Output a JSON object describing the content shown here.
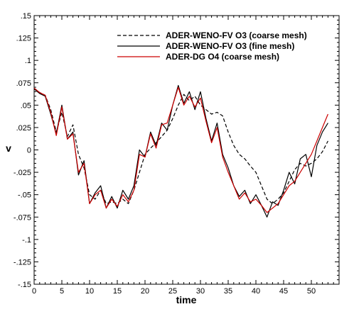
{
  "chart_data": {
    "type": "line",
    "xlabel": "time",
    "ylabel": "v",
    "xlim": [
      0,
      55
    ],
    "ylim": [
      -0.15,
      0.15
    ],
    "xticks": [
      0,
      5,
      10,
      15,
      20,
      25,
      30,
      35,
      40,
      45,
      50
    ],
    "yticks": [
      -0.15,
      -0.125,
      -0.1,
      -0.075,
      -0.05,
      -0.025,
      0,
      0.025,
      0.05,
      0.075,
      0.1,
      0.125,
      0.15
    ],
    "grid": false,
    "legend_position": "top-right",
    "series": [
      {
        "name": "ADER-WENO-FV O3 (coarse mesh)",
        "style": "dashed",
        "color": "#000000",
        "x": [
          0,
          1,
          2,
          3,
          4,
          5,
          6,
          7,
          8,
          9,
          10,
          11,
          12,
          13,
          14,
          15,
          16,
          17,
          18,
          19,
          20,
          21,
          22,
          23,
          24,
          25,
          26,
          27,
          28,
          29,
          30,
          31,
          32,
          33,
          34,
          35,
          36,
          37,
          38,
          39,
          40,
          41,
          42,
          43,
          44,
          45,
          46,
          47,
          48,
          49,
          50,
          51,
          52,
          53
        ],
        "y": [
          0.069,
          0.064,
          0.061,
          0.045,
          0.02,
          0.042,
          0.015,
          0.028,
          -0.005,
          -0.02,
          -0.05,
          -0.055,
          -0.045,
          -0.06,
          -0.058,
          -0.06,
          -0.055,
          -0.06,
          -0.045,
          -0.025,
          -0.005,
          0.002,
          0.008,
          0.015,
          0.022,
          0.035,
          0.05,
          0.062,
          0.055,
          0.06,
          0.05,
          0.045,
          0.04,
          0.042,
          0.038,
          0.02,
          0.005,
          -0.005,
          -0.01,
          -0.018,
          -0.025,
          -0.04,
          -0.055,
          -0.06,
          -0.055,
          -0.048,
          -0.035,
          -0.022,
          -0.015,
          -0.018,
          -0.015,
          -0.01,
          -0.002,
          0.01
        ]
      },
      {
        "name": "ADER-WENO-FV O3 (fine mesh)",
        "style": "solid",
        "color": "#000000",
        "x": [
          0,
          1,
          2,
          3,
          4,
          5,
          6,
          7,
          8,
          9,
          10,
          11,
          12,
          13,
          14,
          15,
          16,
          17,
          18,
          19,
          20,
          21,
          22,
          23,
          24,
          25,
          26,
          27,
          28,
          29,
          30,
          31,
          32,
          33,
          34,
          35,
          36,
          37,
          38,
          39,
          40,
          41,
          42,
          43,
          44,
          45,
          46,
          47,
          48,
          49,
          50,
          51,
          52,
          53
        ],
        "y": [
          0.068,
          0.063,
          0.06,
          0.04,
          0.018,
          0.05,
          0.012,
          0.02,
          -0.028,
          -0.012,
          -0.06,
          -0.048,
          -0.04,
          -0.065,
          -0.052,
          -0.065,
          -0.045,
          -0.055,
          -0.04,
          0.0,
          -0.008,
          0.02,
          0.005,
          0.03,
          0.022,
          0.05,
          0.072,
          0.052,
          0.065,
          0.045,
          0.065,
          0.035,
          0.01,
          0.03,
          -0.005,
          -0.02,
          -0.04,
          -0.052,
          -0.045,
          -0.06,
          -0.05,
          -0.062,
          -0.075,
          -0.058,
          -0.062,
          -0.045,
          -0.025,
          -0.038,
          -0.01,
          -0.005,
          -0.03,
          0.005,
          0.02,
          0.03
        ]
      },
      {
        "name": "ADER-DG O4 (coarse mesh)",
        "style": "solid",
        "color": "#cc0000",
        "x": [
          0,
          1,
          2,
          3,
          4,
          5,
          6,
          7,
          8,
          9,
          10,
          11,
          12,
          13,
          14,
          15,
          16,
          17,
          18,
          19,
          20,
          21,
          22,
          23,
          24,
          25,
          26,
          27,
          28,
          29,
          30,
          31,
          32,
          33,
          34,
          35,
          36,
          37,
          38,
          39,
          40,
          41,
          42,
          43,
          44,
          45,
          46,
          47,
          48,
          49,
          50,
          51,
          52,
          53
        ],
        "y": [
          0.069,
          0.064,
          0.061,
          0.042,
          0.016,
          0.048,
          0.012,
          0.018,
          -0.025,
          -0.015,
          -0.06,
          -0.05,
          -0.045,
          -0.065,
          -0.055,
          -0.063,
          -0.05,
          -0.058,
          -0.045,
          -0.005,
          -0.008,
          0.018,
          0.002,
          0.028,
          0.03,
          0.05,
          0.07,
          0.05,
          0.06,
          0.048,
          0.058,
          0.032,
          0.008,
          0.025,
          -0.008,
          -0.025,
          -0.04,
          -0.055,
          -0.048,
          -0.058,
          -0.055,
          -0.062,
          -0.07,
          -0.065,
          -0.06,
          -0.05,
          -0.04,
          -0.035,
          -0.025,
          -0.015,
          -0.005,
          0.01,
          0.025,
          0.04
        ]
      }
    ]
  }
}
